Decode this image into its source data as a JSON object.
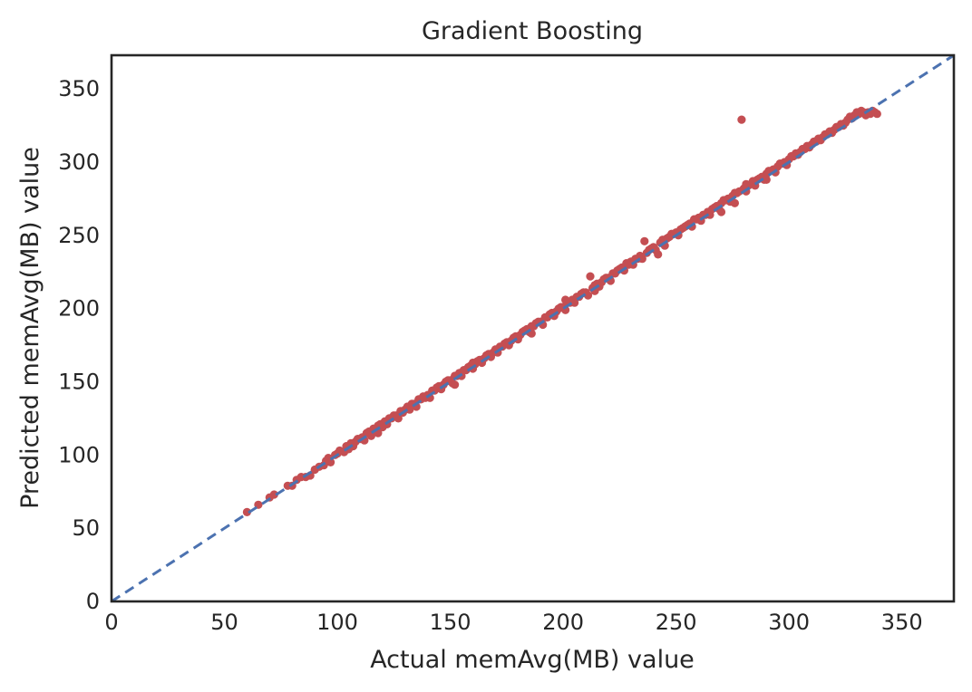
{
  "chart_data": {
    "type": "scatter",
    "title": "Gradient Boosting",
    "xlabel": "Actual memAvg(MB) value",
    "ylabel": "Predicted memAvg(MB) value",
    "xlim": [
      0,
      373
    ],
    "ylim": [
      0,
      373
    ],
    "xticks": [
      0,
      50,
      100,
      150,
      200,
      250,
      300,
      350
    ],
    "yticks": [
      0,
      50,
      100,
      150,
      200,
      250,
      300,
      350
    ],
    "grid": false,
    "reference_line": {
      "style": "dashed",
      "from": [
        0,
        0
      ],
      "to": [
        373,
        373
      ],
      "color": "#4c72b0"
    },
    "point_color": "#c44e52",
    "series": [
      {
        "points": [
          [
            60,
            61
          ],
          [
            65,
            66
          ],
          [
            70,
            71
          ],
          [
            72,
            73
          ],
          [
            78,
            79
          ],
          [
            80,
            79
          ],
          [
            82,
            83
          ],
          [
            84,
            85
          ],
          [
            86,
            85
          ],
          [
            88,
            86
          ],
          [
            90,
            90
          ],
          [
            92,
            92
          ],
          [
            94,
            93
          ],
          [
            95,
            96
          ],
          [
            97,
            95
          ],
          [
            99,
            100
          ],
          [
            100,
            101
          ],
          [
            101,
            103
          ],
          [
            103,
            102
          ],
          [
            104,
            106
          ],
          [
            105,
            104
          ],
          [
            107,
            106
          ],
          [
            108,
            109
          ],
          [
            110,
            111
          ],
          [
            111,
            112
          ],
          [
            112,
            110
          ],
          [
            114,
            116
          ],
          [
            115,
            113
          ],
          [
            117,
            118
          ],
          [
            118,
            120
          ],
          [
            120,
            119
          ],
          [
            121,
            123
          ],
          [
            122,
            121
          ],
          [
            124,
            125
          ],
          [
            126,
            127
          ],
          [
            127,
            125
          ],
          [
            129,
            129
          ],
          [
            130,
            131
          ],
          [
            132,
            131
          ],
          [
            134,
            135
          ],
          [
            135,
            133
          ],
          [
            137,
            138
          ],
          [
            139,
            139
          ],
          [
            140,
            141
          ],
          [
            141,
            139
          ],
          [
            143,
            144
          ],
          [
            144,
            146
          ],
          [
            146,
            145
          ],
          [
            147,
            148
          ],
          [
            148,
            150
          ],
          [
            150,
            151
          ],
          [
            151,
            149
          ],
          [
            153,
            154
          ],
          [
            154,
            156
          ],
          [
            155,
            154
          ],
          [
            157,
            158
          ],
          [
            158,
            160
          ],
          [
            160,
            159
          ],
          [
            161,
            162
          ],
          [
            162,
            164
          ],
          [
            164,
            163
          ],
          [
            165,
            166
          ],
          [
            166,
            168
          ],
          [
            168,
            167
          ],
          [
            169,
            170
          ],
          [
            170,
            172
          ],
          [
            171,
            170
          ],
          [
            173,
            174
          ],
          [
            174,
            176
          ],
          [
            176,
            175
          ],
          [
            177,
            178
          ],
          [
            178,
            180
          ],
          [
            180,
            179
          ],
          [
            181,
            182
          ],
          [
            182,
            184
          ],
          [
            184,
            186
          ],
          [
            185,
            184
          ],
          [
            187,
            188
          ],
          [
            188,
            190
          ],
          [
            190,
            191
          ],
          [
            191,
            189
          ],
          [
            193,
            194
          ],
          [
            194,
            196
          ],
          [
            196,
            195
          ],
          [
            197,
            198
          ],
          [
            198,
            200
          ],
          [
            200,
            201
          ],
          [
            201,
            199
          ],
          [
            203,
            204
          ],
          [
            204,
            206
          ],
          [
            205,
            204
          ],
          [
            207,
            208
          ],
          [
            208,
            210
          ],
          [
            210,
            211
          ],
          [
            211,
            209
          ],
          [
            212,
            222
          ],
          [
            213,
            214
          ],
          [
            214,
            216
          ],
          [
            216,
            215
          ],
          [
            217,
            218
          ],
          [
            218,
            220
          ],
          [
            220,
            221
          ],
          [
            221,
            219
          ],
          [
            223,
            224
          ],
          [
            224,
            226
          ],
          [
            226,
            228
          ],
          [
            227,
            226
          ],
          [
            229,
            230
          ],
          [
            230,
            232
          ],
          [
            231,
            230
          ],
          [
            233,
            234
          ],
          [
            234,
            236
          ],
          [
            235,
            234
          ],
          [
            236,
            246
          ],
          [
            237,
            238
          ],
          [
            238,
            240
          ],
          [
            240,
            242
          ],
          [
            241,
            240
          ],
          [
            242,
            237
          ],
          [
            243,
            245
          ],
          [
            244,
            247
          ],
          [
            246,
            248
          ],
          [
            247,
            249
          ],
          [
            248,
            251
          ],
          [
            250,
            252
          ],
          [
            251,
            250
          ],
          [
            253,
            255
          ],
          [
            254,
            256
          ],
          [
            256,
            258
          ],
          [
            257,
            256
          ],
          [
            258,
            261
          ],
          [
            260,
            262
          ],
          [
            261,
            260
          ],
          [
            263,
            264
          ],
          [
            264,
            266
          ],
          [
            265,
            264
          ],
          [
            266,
            268
          ],
          [
            268,
            270
          ],
          [
            269,
            268
          ],
          [
            270,
            272
          ],
          [
            271,
            274
          ],
          [
            273,
            275
          ],
          [
            274,
            273
          ],
          [
            275,
            277
          ],
          [
            276,
            279
          ],
          [
            278,
            280
          ],
          [
            279,
            329
          ],
          [
            280,
            282
          ],
          [
            281,
            280
          ],
          [
            283,
            285
          ],
          [
            284,
            287
          ],
          [
            285,
            284
          ],
          [
            286,
            288
          ],
          [
            288,
            290
          ],
          [
            289,
            288
          ],
          [
            290,
            292
          ],
          [
            291,
            294
          ],
          [
            293,
            295
          ],
          [
            294,
            293
          ],
          [
            295,
            297
          ],
          [
            296,
            299
          ],
          [
            298,
            300
          ],
          [
            299,
            298
          ],
          [
            300,
            302
          ],
          [
            301,
            304
          ],
          [
            303,
            306
          ],
          [
            304,
            305
          ],
          [
            305,
            307
          ],
          [
            306,
            309
          ],
          [
            308,
            311
          ],
          [
            309,
            310
          ],
          [
            310,
            312
          ],
          [
            311,
            314
          ],
          [
            313,
            316
          ],
          [
            314,
            315
          ],
          [
            315,
            317
          ],
          [
            316,
            319
          ],
          [
            318,
            321
          ],
          [
            319,
            320
          ],
          [
            320,
            322
          ],
          [
            321,
            324
          ],
          [
            323,
            326
          ],
          [
            324,
            325
          ],
          [
            325,
            327
          ],
          [
            326,
            329
          ],
          [
            327,
            331
          ],
          [
            328,
            330
          ],
          [
            329,
            332
          ],
          [
            330,
            334
          ],
          [
            331,
            333
          ],
          [
            332,
            335
          ],
          [
            333,
            334
          ],
          [
            334,
            332
          ],
          [
            335,
            334
          ],
          [
            336,
            333
          ],
          [
            337,
            335
          ],
          [
            338,
            334
          ],
          [
            339,
            333
          ],
          [
            222,
            224
          ],
          [
            225,
            227
          ],
          [
            239,
            241
          ],
          [
            245,
            247
          ],
          [
            252,
            254
          ],
          [
            259,
            261
          ],
          [
            262,
            264
          ],
          [
            267,
            269
          ],
          [
            272,
            274
          ],
          [
            277,
            279
          ],
          [
            282,
            284
          ],
          [
            287,
            289
          ],
          [
            292,
            294
          ],
          [
            297,
            299
          ],
          [
            302,
            304
          ],
          [
            307,
            309
          ],
          [
            312,
            314
          ],
          [
            317,
            319
          ],
          [
            322,
            324
          ],
          [
            145,
            147
          ],
          [
            149,
            151
          ],
          [
            156,
            158
          ],
          [
            163,
            165
          ],
          [
            167,
            169
          ],
          [
            172,
            174
          ],
          [
            175,
            177
          ],
          [
            179,
            181
          ],
          [
            183,
            185
          ],
          [
            186,
            188
          ],
          [
            189,
            191
          ],
          [
            192,
            194
          ],
          [
            195,
            197
          ],
          [
            199,
            201
          ],
          [
            202,
            204
          ],
          [
            206,
            208
          ],
          [
            209,
            211
          ],
          [
            215,
            217
          ],
          [
            219,
            221
          ],
          [
            228,
            230
          ],
          [
            232,
            234
          ],
          [
            106,
            108
          ],
          [
            109,
            111
          ],
          [
            113,
            115
          ],
          [
            116,
            118
          ],
          [
            119,
            121
          ],
          [
            123,
            125
          ],
          [
            125,
            127
          ],
          [
            128,
            130
          ],
          [
            131,
            133
          ],
          [
            133,
            135
          ],
          [
            136,
            138
          ],
          [
            138,
            140
          ],
          [
            142,
            144
          ],
          [
            152,
            154
          ],
          [
            159,
            161
          ],
          [
            249,
            251
          ],
          [
            255,
            257
          ],
          [
            281,
            285
          ],
          [
            276,
            272
          ],
          [
            270,
            266
          ],
          [
            290,
            288
          ],
          [
            245,
            243
          ],
          [
            228,
            231
          ],
          [
            186,
            183
          ],
          [
            201,
            206
          ],
          [
            214,
            212
          ],
          [
            152,
            148
          ],
          [
            160,
            163
          ],
          [
            118,
            115
          ],
          [
            96,
            98
          ]
        ]
      }
    ]
  }
}
